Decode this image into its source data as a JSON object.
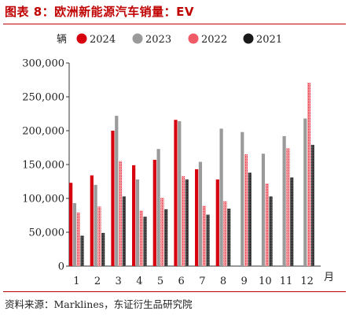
{
  "figure": {
    "title": "图表 8：欧洲新能源汽车销量：EV",
    "source": "资料来源：Marklines，东证衍生品研究院"
  },
  "chart_data": {
    "type": "bar",
    "ylabel": "辆",
    "xunit": "月",
    "categories": [
      "1",
      "2",
      "3",
      "4",
      "5",
      "6",
      "7",
      "8",
      "9",
      "10",
      "11",
      "12"
    ],
    "ylim": [
      0,
      300000
    ],
    "yticks": [
      0,
      50000,
      100000,
      150000,
      200000,
      250000,
      300000
    ],
    "ytick_labels": [
      "0",
      "50,000",
      "100,000",
      "150,000",
      "200,000",
      "250,000",
      "300,000"
    ],
    "legend_position": "top",
    "grid": false,
    "series": [
      {
        "name": "2024",
        "color": "#d7000f",
        "pattern": "solid",
        "values": [
          123000,
          134000,
          200000,
          149000,
          157000,
          216000,
          143000,
          128000,
          null,
          null,
          null,
          null
        ]
      },
      {
        "name": "2023",
        "color": "#9a9a9a",
        "pattern": "solid",
        "values": [
          93000,
          120000,
          222000,
          128000,
          173000,
          214000,
          154000,
          203000,
          198000,
          166000,
          192000,
          218000
        ]
      },
      {
        "name": "2022",
        "color": "#f15b67",
        "pattern": "dotted",
        "values": [
          79000,
          88000,
          155000,
          82000,
          101000,
          133000,
          89000,
          96000,
          165000,
          122000,
          174000,
          271000
        ]
      },
      {
        "name": "2021",
        "color": "#1a1a1a",
        "pattern": "dotted",
        "values": [
          45000,
          49000,
          103000,
          73000,
          84000,
          128000,
          76000,
          85000,
          138000,
          103000,
          131000,
          179000
        ]
      }
    ]
  }
}
